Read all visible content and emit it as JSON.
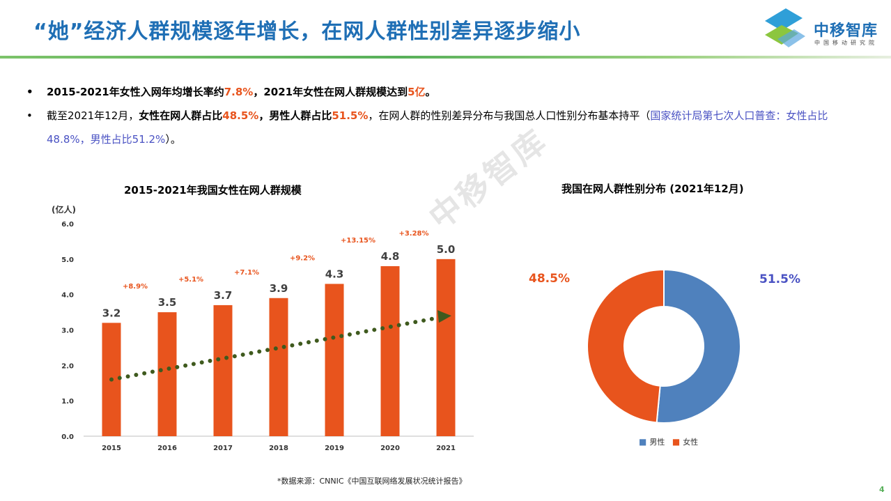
{
  "header": {
    "title": "“她”经济人群规模逐年增长，在网人群性别差异逐步缩小",
    "logo_text": "中移智库",
    "logo_subtext": "中国移动研究院"
  },
  "bullets": [
    {
      "dot": "•",
      "p1": "2015-2021年女性入网年均增长率约",
      "v1": "7.8%",
      "p2": "，2021年女性在网人群规模达到",
      "v2": "5亿",
      "p3": "。"
    },
    {
      "dot": "•",
      "p1": "截至2021年12月，",
      "p2": "女性在网人群占比",
      "v1": "48.5%",
      "p3": "，男性人群占比",
      "v2": "51.5%",
      "p4": "，在网人群的性别差异分布与我国总人口性别分布基本持平（",
      "blue": "国家统计局第七次人口普查：女性占比48.8%，男性占比51.2%",
      "p5": "）。"
    }
  ],
  "watermark": "中移智库",
  "chart_data": [
    {
      "type": "bar",
      "title": "2015-2021年我国女性在网人群规模",
      "ylabel": "(亿人)",
      "xlabel": "",
      "categories": [
        "2015",
        "2016",
        "2017",
        "2018",
        "2019",
        "2020",
        "2021"
      ],
      "values": [
        3.2,
        3.5,
        3.7,
        3.9,
        4.3,
        4.8,
        5.0
      ],
      "value_labels": [
        "3.2",
        "3.5",
        "3.7",
        "3.9",
        "4.3",
        "4.8",
        "5.0"
      ],
      "growth_labels": [
        "+8.9%",
        "+5.1%",
        "+7.1%",
        "+9.2%",
        "+13.15%",
        "+3.28%"
      ],
      "ylim": [
        0,
        6
      ],
      "yticks": [
        "0.0",
        "1.0",
        "2.0",
        "3.0",
        "4.0",
        "5.0",
        "6.0"
      ],
      "trendline": {
        "style": "dotted-arrow",
        "from": [
          0,
          1.6
        ],
        "to": [
          6,
          3.4
        ]
      },
      "grid": false,
      "colors": {
        "bar": "#e8541d",
        "trend": "#3f5a1e",
        "growth": "#e8541d"
      }
    },
    {
      "type": "pie",
      "title": "我国在网人群性别分布 (2021年12月)",
      "categories": [
        "男性",
        "女性"
      ],
      "values": [
        51.5,
        48.5
      ],
      "labels": [
        "51.5%",
        "48.5%"
      ],
      "donut": true,
      "legend": "bottom",
      "colors": [
        "#4f81bd",
        "#e8541d"
      ]
    }
  ],
  "footer": {
    "source": "*数据来源：CNNIC《中国互联网络发展状况统计报告》",
    "page": "4"
  }
}
